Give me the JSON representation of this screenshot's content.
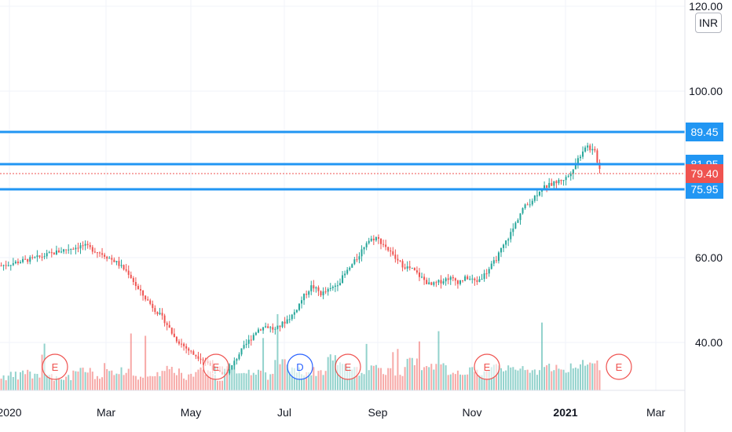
{
  "currency": "INR",
  "chart_data": {
    "type": "candlestick",
    "x_ticks": [
      "2020",
      "Mar",
      "May",
      "Jul",
      "Sep",
      "Nov",
      "2021",
      "Mar"
    ],
    "y_ticks": [
      "120.00",
      "100.00",
      "60.00",
      "40.00"
    ],
    "ylim": [
      25,
      122
    ],
    "last_price": "79.40",
    "horizontal_lines": [
      {
        "value": 89.45,
        "label": "89.45"
      },
      {
        "value": 81.95,
        "label": "81.95"
      },
      {
        "value": 75.95,
        "label": "75.95"
      }
    ],
    "events": [
      "E",
      "E",
      "D",
      "E",
      "E",
      "E"
    ],
    "price_path": [
      [
        0,
        56
      ],
      [
        8,
        58
      ],
      [
        14,
        60
      ],
      [
        18,
        61
      ],
      [
        22,
        59
      ],
      [
        25,
        57
      ],
      [
        28,
        54
      ],
      [
        30,
        50
      ],
      [
        33,
        46
      ],
      [
        36,
        42
      ],
      [
        38,
        38
      ],
      [
        40,
        36
      ],
      [
        42,
        34
      ],
      [
        44,
        33
      ],
      [
        46,
        31
      ],
      [
        48,
        29
      ],
      [
        50,
        30
      ],
      [
        52,
        34
      ],
      [
        54,
        37
      ],
      [
        56,
        40
      ],
      [
        58,
        41
      ],
      [
        60,
        40
      ],
      [
        62,
        42
      ],
      [
        64,
        44
      ],
      [
        66,
        48
      ],
      [
        68,
        51
      ],
      [
        70,
        49
      ],
      [
        72,
        50
      ],
      [
        74,
        52
      ],
      [
        76,
        55
      ],
      [
        78,
        58
      ],
      [
        80,
        62
      ],
      [
        82,
        63
      ],
      [
        84,
        61
      ],
      [
        86,
        58
      ],
      [
        88,
        56
      ],
      [
        90,
        55
      ],
      [
        92,
        53
      ],
      [
        94,
        51
      ],
      [
        96,
        52
      ],
      [
        98,
        53
      ],
      [
        100,
        52
      ],
      [
        102,
        53
      ],
      [
        104,
        52
      ],
      [
        106,
        54
      ],
      [
        108,
        57
      ],
      [
        110,
        61
      ],
      [
        112,
        65
      ],
      [
        114,
        70
      ],
      [
        116,
        72
      ],
      [
        118,
        75
      ],
      [
        120,
        76
      ],
      [
        122,
        77
      ],
      [
        124,
        78
      ],
      [
        126,
        82
      ],
      [
        128,
        86
      ],
      [
        129,
        85
      ],
      [
        130,
        84
      ],
      [
        131,
        80
      ]
    ],
    "volume_levels": [
      2,
      2,
      3,
      2,
      3,
      2,
      2,
      3,
      3,
      2,
      4,
      3,
      3,
      2,
      2,
      3,
      4,
      3,
      2,
      3,
      3,
      2,
      4,
      3,
      3,
      3,
      2,
      5,
      4,
      3,
      3,
      3,
      6,
      5,
      4,
      3,
      4,
      3,
      3,
      3,
      5,
      4,
      4,
      4,
      3,
      3,
      3,
      3,
      4,
      4,
      3,
      4,
      3,
      4,
      4,
      3,
      4,
      5,
      5,
      4
    ]
  }
}
